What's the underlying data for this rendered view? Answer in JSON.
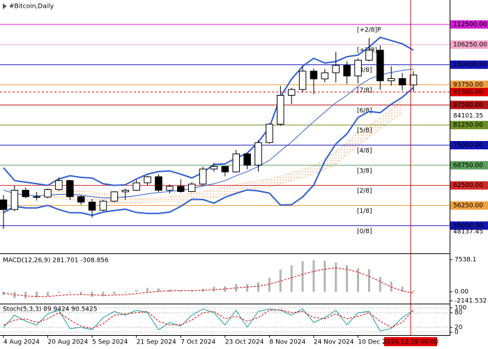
{
  "chart_data": [
    {
      "type": "candlestick",
      "title": "#Bitcoin,Daily",
      "x": [
        "2024-08-04",
        "2024-08-08",
        "2024-08-12",
        "2024-08-16",
        "2024-08-20",
        "2024-08-24",
        "2024-08-28",
        "2024-09-01",
        "2024-09-05",
        "2024-09-09",
        "2024-09-13",
        "2024-09-17",
        "2024-09-21",
        "2024-09-25",
        "2024-09-29",
        "2024-10-03",
        "2024-10-07",
        "2024-10-11",
        "2024-10-15",
        "2024-10-19",
        "2024-10-23",
        "2024-10-27",
        "2024-10-31",
        "2024-11-04",
        "2024-11-08",
        "2024-11-12",
        "2024-11-16",
        "2024-11-20",
        "2024-11-24",
        "2024-11-28",
        "2024-12-02",
        "2024-12-06",
        "2024-12-10",
        "2024-12-14",
        "2024-12-18",
        "2024-12-22",
        "2024-12-26",
        "2024-12-30"
      ],
      "open": [
        58000,
        55000,
        61000,
        59000,
        58900,
        61200,
        64000,
        59000,
        57300,
        54800,
        57600,
        60500,
        61000,
        63300,
        65200,
        61000,
        62200,
        60600,
        62900,
        67600,
        68400,
        66700,
        72300,
        68800,
        75800,
        81500,
        90500,
        92300,
        98000,
        95600,
        97500,
        99800,
        96500,
        101400,
        104500,
        95000,
        95700,
        93700
      ],
      "high": [
        59500,
        62500,
        61800,
        60500,
        61500,
        65000,
        64200,
        59500,
        58300,
        58000,
        60700,
        61500,
        64200,
        65500,
        66000,
        62800,
        64400,
        63500,
        68300,
        69500,
        68500,
        73500,
        72600,
        76500,
        81800,
        93400,
        92800,
        99500,
        98800,
        98700,
        104000,
        101000,
        102000,
        108300,
        106000,
        99500,
        97400,
        98000
      ],
      "low": [
        49000,
        54500,
        58500,
        57800,
        58500,
        60800,
        58000,
        56500,
        52500,
        54500,
        57300,
        58000,
        60800,
        62500,
        60500,
        60000,
        60200,
        60400,
        62500,
        66800,
        65300,
        66500,
        67500,
        66800,
        75500,
        81000,
        87800,
        91500,
        90800,
        94500,
        94500,
        94000,
        94200,
        101000,
        92200,
        93500,
        92000,
        91500
      ],
      "close": [
        55000,
        61000,
        59000,
        58900,
        61200,
        64000,
        59000,
        57300,
        54800,
        57600,
        60500,
        61000,
        63300,
        65200,
        61000,
        62200,
        60600,
        62900,
        67600,
        68400,
        66700,
        72300,
        68800,
        75800,
        81500,
        90500,
        92300,
        98000,
        95600,
        97500,
        99800,
        96500,
        101400,
        104500,
        95000,
        95700,
        93700,
        96800
      ],
      "up_color": "#ffffff",
      "down_color": "#000000",
      "xlim": [
        "2024-08-03",
        "2024-12-31"
      ],
      "ylim": [
        41600,
        120100
      ],
      "xticks": [
        {
          "value": "2024-08-04",
          "label": "4 Aug 2024"
        },
        {
          "value": "2024-08-20",
          "label": "20 Aug 2024"
        },
        {
          "value": "2024-09-05",
          "label": "5 Sep 2024"
        },
        {
          "value": "2024-09-21",
          "label": "21 Sep 2024"
        },
        {
          "value": "2024-10-07",
          "label": "7 Oct 2024"
        },
        {
          "value": "2024-10-23",
          "label": "23 Oct 2024"
        },
        {
          "value": "2024-11-08",
          "label": "8 Nov 2024"
        },
        {
          "value": "2024-11-24",
          "label": "24 Nov 2024"
        },
        {
          "value": "2024-12-10",
          "label": "10 Dec 2"
        }
      ],
      "levels": [
        {
          "label": "[+2/8]P",
          "value": 112500,
          "value_label": "112500.00",
          "color": "#d21ed2"
        },
        {
          "label": "[+1/8]",
          "value": 106250,
          "value_label": "106250.00",
          "color": "#f4a6c8"
        },
        {
          "label": "[8/8]",
          "value": 100000,
          "value_label": "100000.00",
          "color": "#1414b4"
        },
        {
          "label": "[7/8]",
          "value": 93750,
          "value_label": "93750.00",
          "color": "#f0a040"
        },
        {
          "label": "[6/8]",
          "value": 87500,
          "value_label": "87500.00",
          "color": "#b41414"
        },
        {
          "label": "[5/8]",
          "value": 81250,
          "value_label": "81250.00",
          "color": "#6b8e23"
        },
        {
          "label": "[4/8]",
          "value": 75000,
          "value_label": "75000.00",
          "color": "#1414b4"
        },
        {
          "label": "[3/8]",
          "value": 68750,
          "value_label": "68750.00",
          "color": "#5aa05a"
        },
        {
          "label": "[2/8]",
          "value": 62500,
          "value_label": "62500.00",
          "color": "#d22828"
        },
        {
          "label": "[1/8]",
          "value": 56250,
          "value_label": "56250.00",
          "color": "#f0a040"
        },
        {
          "label": "[0/8]",
          "value": 50000,
          "value_label": "50000.00",
          "color": "#1414b4"
        }
      ],
      "bands": [
        {
          "color": "#2f5fd0",
          "values": [
            68000,
            64000,
            63500,
            63000,
            62500,
            64500,
            65500,
            65000,
            64800,
            63000,
            62500,
            62700,
            64500,
            66000,
            66800,
            67000,
            66000,
            64800,
            66500,
            69000,
            69200,
            71000,
            72500,
            76000,
            80500,
            90000,
            95500,
            99500,
            102000,
            100500,
            101000,
            102500,
            103000,
            105500,
            108500,
            107500,
            106500,
            104500
          ]
        },
        {
          "color": "#2f5fd0",
          "values": [
            61000,
            60000,
            59500,
            59300,
            59400,
            59700,
            59700,
            59500,
            59000,
            58600,
            58600,
            58900,
            59300,
            59900,
            60300,
            60600,
            61000,
            61500,
            62300,
            63000,
            64000,
            65500,
            66800,
            68400,
            70300,
            73200,
            76000,
            79200,
            82300,
            85300,
            88200,
            90500,
            93300,
            95500,
            96800,
            97600,
            98200,
            98700
          ]
        },
        {
          "color": "#2f5fd0",
          "values": [
            54000,
            56000,
            55500,
            55500,
            56300,
            55000,
            54000,
            54000,
            53200,
            54200,
            54700,
            55100,
            54100,
            53800,
            53800,
            54200,
            56000,
            58200,
            58100,
            57000,
            58800,
            60000,
            61100,
            60800,
            60100,
            56400,
            56500,
            58900,
            62600,
            70100,
            75400,
            78500,
            83600,
            85500,
            85100,
            87700,
            89900,
            92900
          ]
        }
      ],
      "cloud": {
        "color": "#f0a060",
        "x": [
          "2024-08-20",
          "2024-08-28",
          "2024-09-05",
          "2024-09-13",
          "2024-09-21",
          "2024-09-29",
          "2024-10-07",
          "2024-10-15",
          "2024-10-23",
          "2024-10-31",
          "2024-11-08",
          "2024-11-16",
          "2024-11-24",
          "2024-12-02",
          "2024-12-10",
          "2024-12-18",
          "2024-12-26"
        ],
        "upper": [
          61500,
          61000,
          60500,
          59500,
          58500,
          58500,
          59500,
          60500,
          62000,
          63500,
          64500,
          66500,
          68500,
          73000,
          79000,
          83500,
          89000
        ],
        "lower": [
          59000,
          58000,
          57500,
          57000,
          57000,
          57500,
          57500,
          58000,
          59500,
          61000,
          62000,
          64000,
          66000,
          69000,
          75000,
          80000,
          85000
        ]
      },
      "price_line": {
        "value": 91500,
        "label": "91500.00",
        "color": "#e00000"
      },
      "marker_values": [
        84101.35,
        48137.45
      ],
      "cursor": {
        "value": "2024-12-29",
        "label": "2024.12.29 00:00",
        "color": "#e00000"
      }
    },
    {
      "type": "macd",
      "title": "MACD(12,26,9) 281.701 -308.856",
      "histogram": [
        -800,
        -1500,
        -1600,
        -1400,
        -1000,
        -300,
        -200,
        -600,
        -1200,
        -1100,
        -600,
        -200,
        400,
        900,
        800,
        500,
        300,
        200,
        700,
        1200,
        1300,
        1800,
        1800,
        2200,
        3300,
        5200,
        6200,
        7200,
        7400,
        7300,
        6900,
        6200,
        5500,
        5300,
        3500,
        2400,
        1200,
        281.701
      ],
      "signal": [
        -300,
        -700,
        -1000,
        -1100,
        -1100,
        -900,
        -700,
        -650,
        -750,
        -850,
        -800,
        -700,
        -450,
        -150,
        100,
        200,
        250,
        250,
        350,
        500,
        650,
        900,
        1100,
        1300,
        1800,
        2500,
        3300,
        4100,
        4800,
        5300,
        5600,
        5300,
        4600,
        3600,
        2400,
        1100,
        200,
        -308.856
      ],
      "histogram_color": "#b4b4b4",
      "signal_color": "#e00000",
      "ylim": [
        -2470,
        8690
      ],
      "yticks": [
        7538.1,
        {
          "value": 0,
          "label": "0.00"
        },
        -2141.532
      ],
      "grid": false
    },
    {
      "type": "stochastic",
      "title": "Stoch(5,3,3) 89.9424 90.5425",
      "k": [
        20,
        70,
        45,
        30,
        75,
        90,
        15,
        20,
        10,
        60,
        85,
        70,
        90,
        80,
        10,
        40,
        25,
        70,
        95,
        80,
        30,
        90,
        20,
        85,
        95,
        90,
        70,
        95,
        40,
        60,
        90,
        30,
        80,
        85,
        5,
        15,
        60,
        89.9424
      ],
      "d": [
        30,
        50,
        55,
        40,
        55,
        80,
        50,
        25,
        15,
        35,
        70,
        75,
        80,
        85,
        45,
        30,
        30,
        50,
        80,
        85,
        55,
        65,
        45,
        60,
        90,
        92,
        80,
        85,
        60,
        55,
        75,
        55,
        65,
        80,
        45,
        20,
        40,
        90.5425
      ],
      "k_color": "#1a9aa0",
      "d_color": "#e00000",
      "ylim": [
        -8.6,
        111.4
      ],
      "yticks": [
        100,
        80,
        20,
        0
      ],
      "grid": true
    }
  ]
}
